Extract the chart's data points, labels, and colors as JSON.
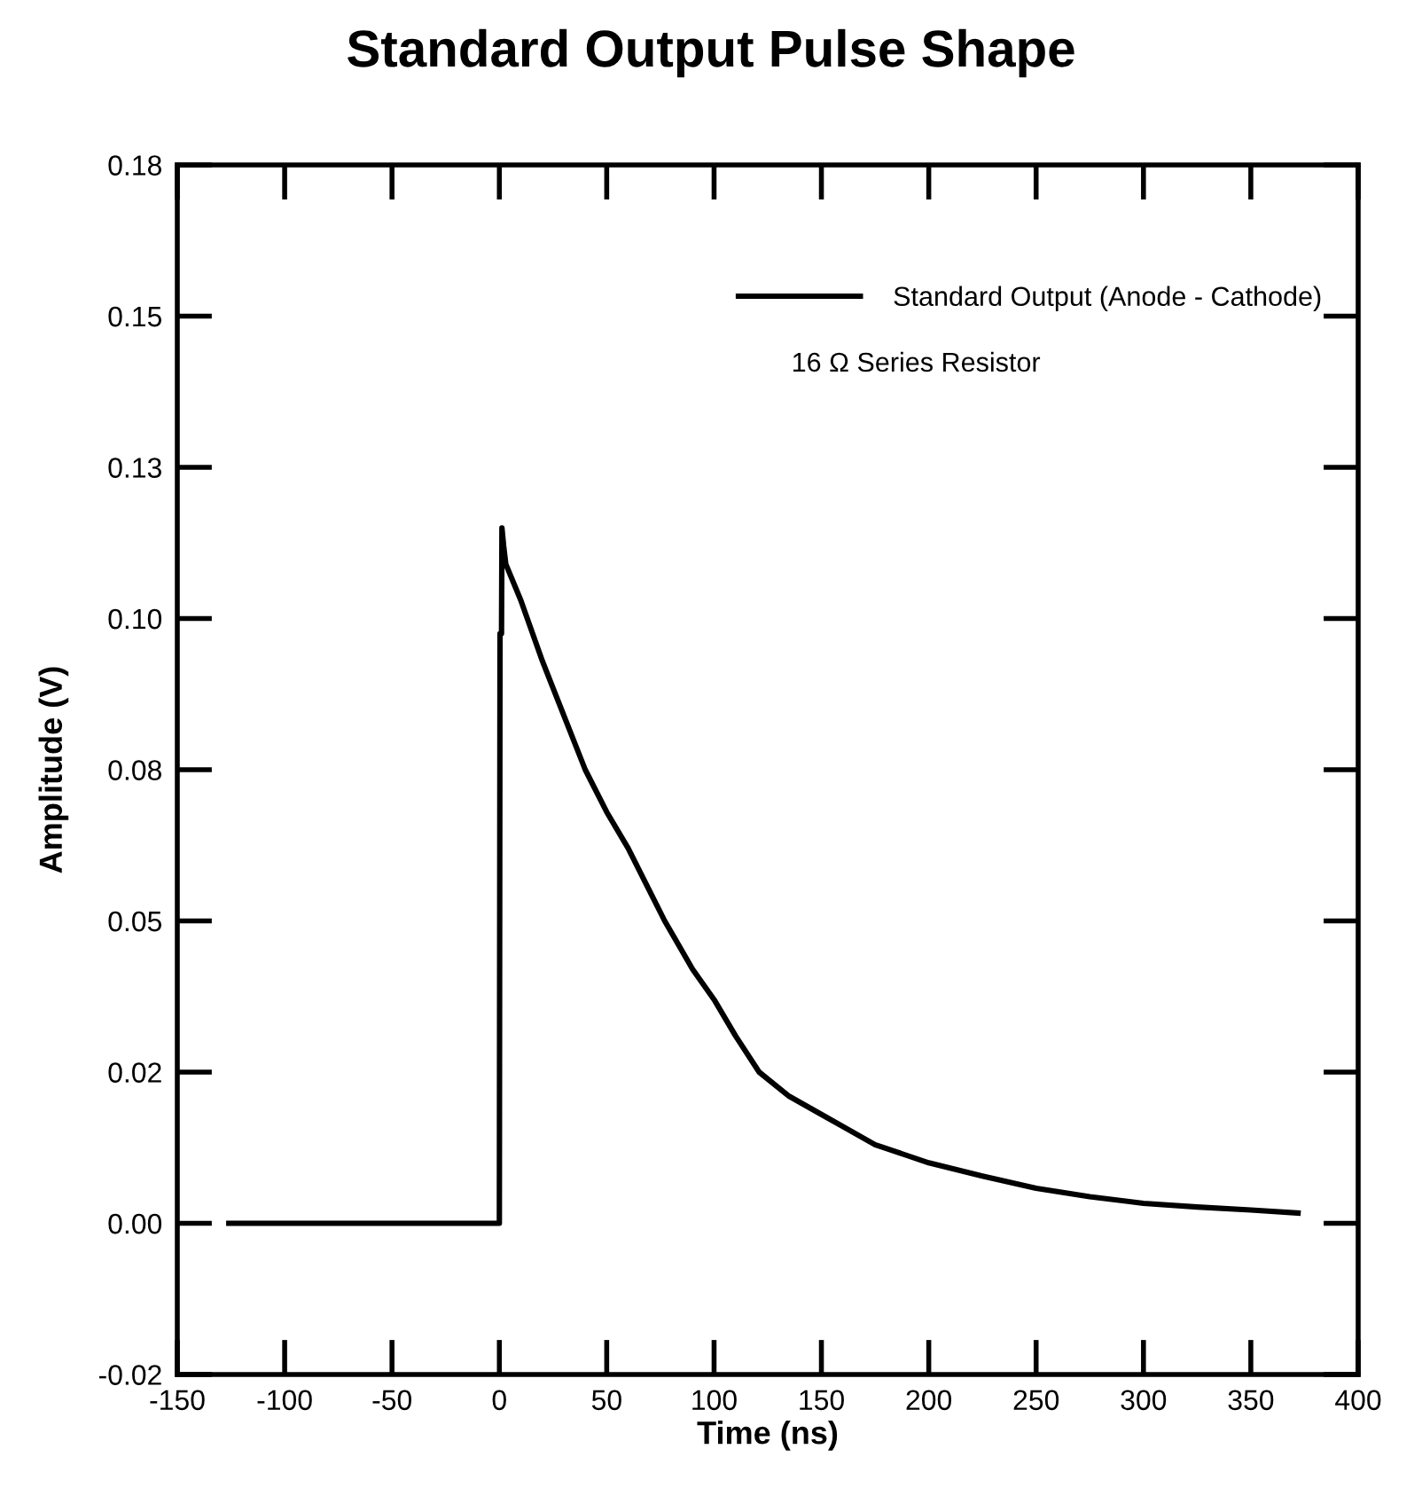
{
  "chart_data": {
    "type": "line",
    "title": "Standard Output Pulse Shape",
    "xlabel": "Time (ns)",
    "ylabel": "Amplitude (V)",
    "annotations": [
      "16 Ω Series Resistor"
    ],
    "xlim": [
      -150,
      400
    ],
    "xticks": [
      -150,
      -100,
      -50,
      0,
      50,
      100,
      150,
      200,
      250,
      300,
      350,
      400
    ],
    "ylim": [
      -0.025,
      0.175
    ],
    "yticks": [
      {
        "value": -0.025,
        "label": "-0.02"
      },
      {
        "value": 0,
        "label": "0.00"
      },
      {
        "value": 0.025,
        "label": "0.02"
      },
      {
        "value": 0.05,
        "label": "0.05"
      },
      {
        "value": 0.075,
        "label": "0.08"
      },
      {
        "value": 0.1,
        "label": "0.10"
      },
      {
        "value": 0.125,
        "label": "0.13"
      },
      {
        "value": 0.15,
        "label": "0.15"
      },
      {
        "value": 0.175,
        "label": "0.18"
      }
    ],
    "grid": false,
    "legend": "top right",
    "marker": "none",
    "line_style": "solid",
    "series": [
      {
        "name": "Standard Output (Anode - Cathode)",
        "color": "#000000",
        "x": [
          -126,
          -1,
          0,
          0.3,
          1,
          1.2,
          2,
          3,
          10,
          20,
          30,
          40,
          50,
          60,
          77,
          90,
          100,
          110,
          121,
          135,
          150,
          175,
          200,
          225,
          250,
          275,
          300,
          325,
          350,
          372
        ],
        "values": [
          0,
          0,
          0,
          0.0975,
          0.0975,
          0.115,
          0.112,
          0.109,
          0.103,
          0.093,
          0.084,
          0.075,
          0.068,
          0.062,
          0.05,
          0.042,
          0.037,
          0.031,
          0.025,
          0.021,
          0.018,
          0.013,
          0.01,
          0.0078,
          0.0058,
          0.0044,
          0.0033,
          0.0027,
          0.0022,
          0.0017
        ]
      }
    ]
  }
}
